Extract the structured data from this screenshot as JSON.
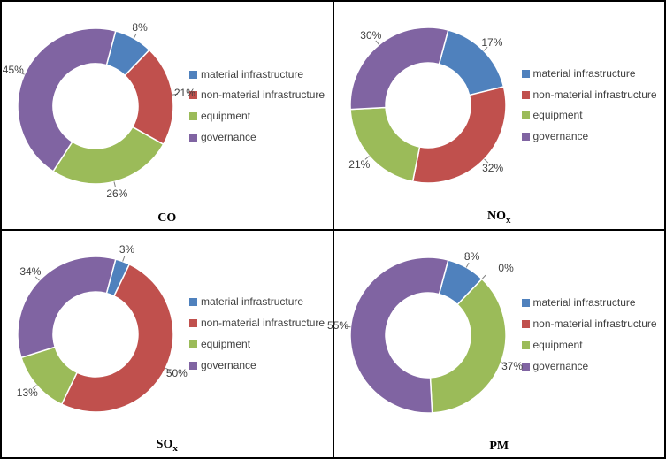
{
  "legend_items": [
    {
      "key": "material",
      "label": "material infrastructure",
      "color": "#4f81bd"
    },
    {
      "key": "non_material",
      "label": "non-material infrastructure",
      "color": "#c0504d"
    },
    {
      "key": "equipment",
      "label": "equipment",
      "color": "#9bbb59"
    },
    {
      "key": "governance",
      "label": "governance",
      "color": "#8064a2"
    }
  ],
  "chart_style": {
    "type": "donut",
    "outer_radius": 88,
    "inner_radius": 48,
    "start_angle_deg": -75,
    "direction": "clockwise",
    "background": "#ffffff",
    "slice_border_color": "#ffffff",
    "slice_border_width": 1.5,
    "label_fontsize": 12,
    "label_color": "#404040",
    "leader_color": "#7f7f7f",
    "caption_fontsize": 14,
    "caption_font": "Times New Roman",
    "caption_weight": "bold"
  },
  "charts": [
    {
      "id": "co",
      "caption_html": "CO",
      "slices": [
        {
          "key": "material",
          "value": 8,
          "label": "8%"
        },
        {
          "key": "non_material",
          "value": 21,
          "label": "21%"
        },
        {
          "key": "equipment",
          "value": 26,
          "label": "26%"
        },
        {
          "key": "governance",
          "value": 45,
          "label": "45%"
        }
      ]
    },
    {
      "id": "nox",
      "caption_html": "NO<sub>x</sub>",
      "slices": [
        {
          "key": "material",
          "value": 17,
          "label": "17%"
        },
        {
          "key": "non_material",
          "value": 32,
          "label": "32%"
        },
        {
          "key": "equipment",
          "value": 21,
          "label": "21%"
        },
        {
          "key": "governance",
          "value": 30,
          "label": "30%"
        }
      ]
    },
    {
      "id": "sox",
      "caption_html": "SO<sub>x</sub>",
      "slices": [
        {
          "key": "material",
          "value": 3,
          "label": "3%"
        },
        {
          "key": "non_material",
          "value": 50,
          "label": "50%"
        },
        {
          "key": "equipment",
          "value": 13,
          "label": "13%"
        },
        {
          "key": "governance",
          "value": 34,
          "label": "34%"
        }
      ]
    },
    {
      "id": "pm",
      "caption_html": "PM",
      "slices": [
        {
          "key": "material",
          "value": 8,
          "label": "8%"
        },
        {
          "key": "non_material",
          "value": 0,
          "label": "0%"
        },
        {
          "key": "equipment",
          "value": 37,
          "label": "37%"
        },
        {
          "key": "governance",
          "value": 55,
          "label": "55%"
        }
      ]
    }
  ]
}
